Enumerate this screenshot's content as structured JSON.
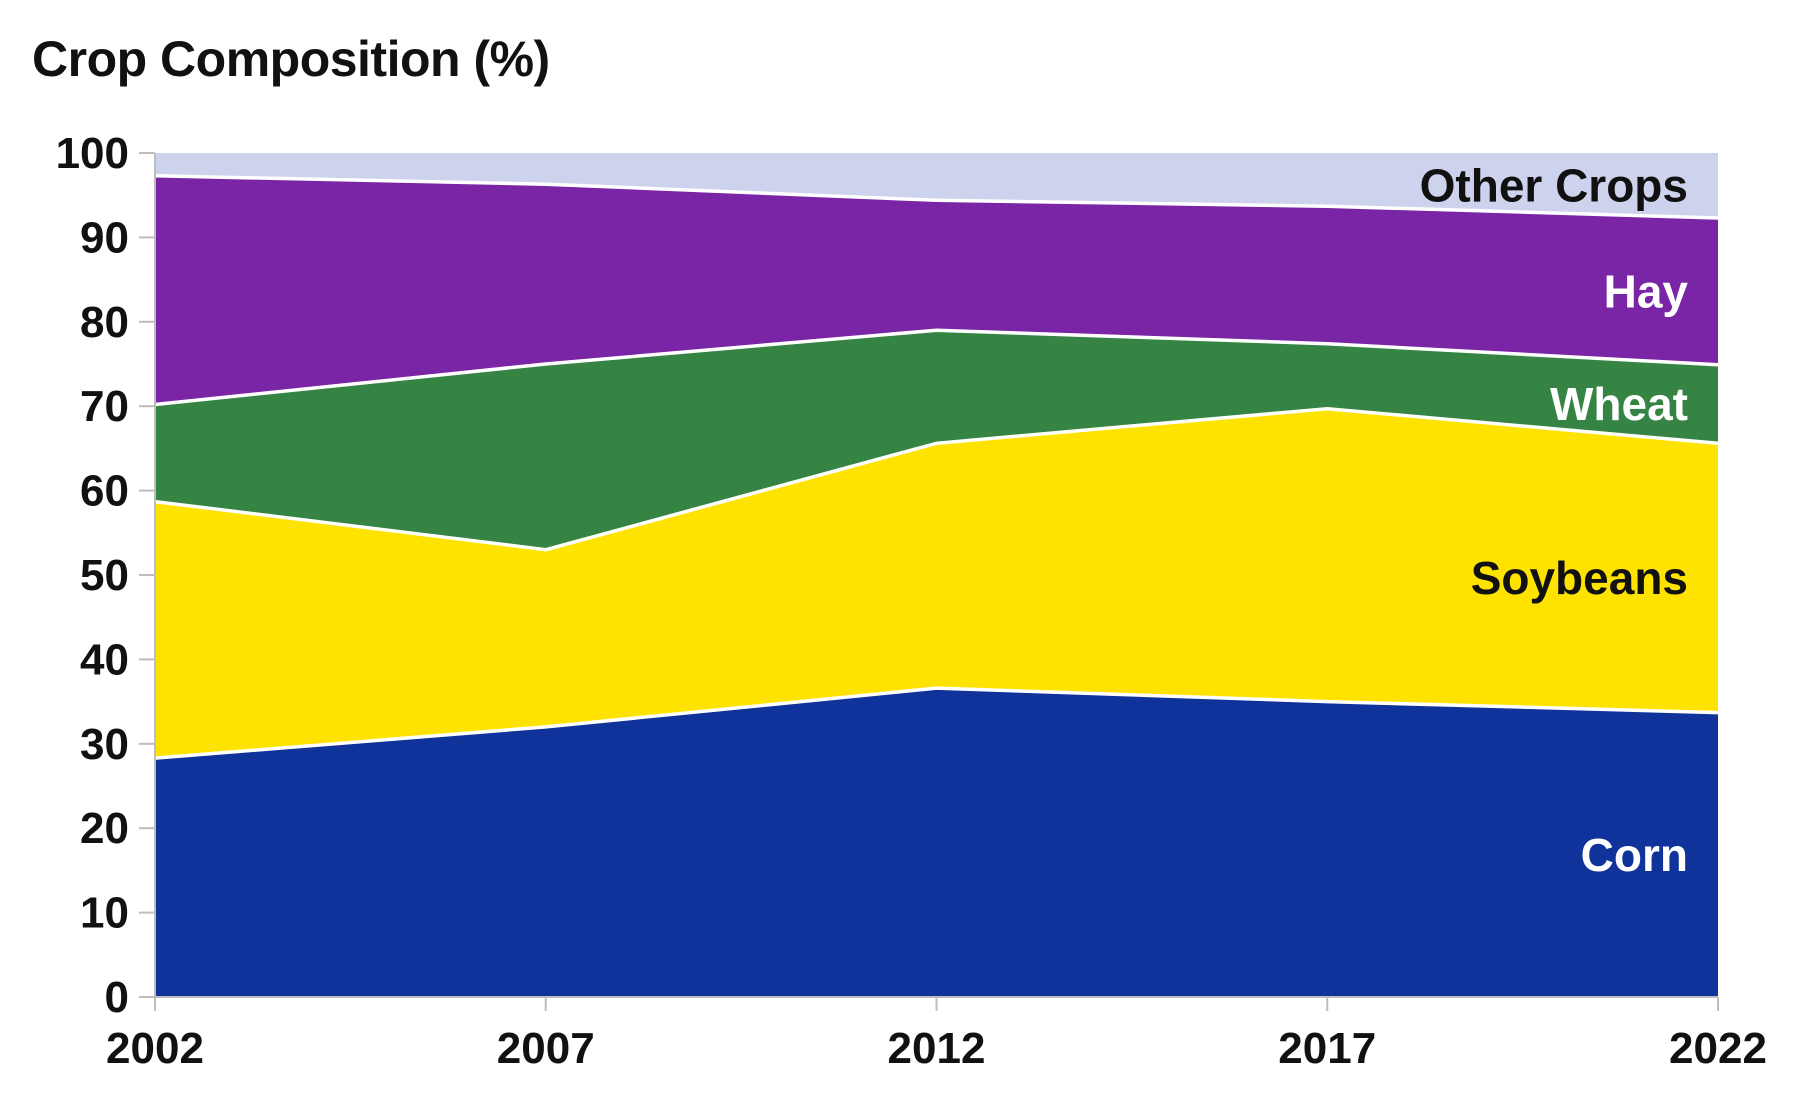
{
  "chart_data": {
    "type": "area",
    "stacked": true,
    "title": "Crop Composition (%)",
    "xlabel": "",
    "ylabel": "",
    "x": [
      "2002",
      "2007",
      "2012",
      "2017",
      "2022"
    ],
    "ylim": [
      0,
      100
    ],
    "yticks": [
      "0",
      "10",
      "20",
      "30",
      "40",
      "50",
      "60",
      "70",
      "80",
      "90",
      "100"
    ],
    "grid": false,
    "legend": "inline labels at right",
    "series": [
      {
        "name": "Corn",
        "values": [
          28.3,
          32.0,
          36.6,
          35.0,
          33.7
        ],
        "color": "#0f339b",
        "label_color": "#ffffff"
      },
      {
        "name": "Soybeans",
        "values": [
          30.4,
          21.0,
          29.0,
          34.7,
          31.9
        ],
        "color": "#ffe300",
        "label_color": "#111111"
      },
      {
        "name": "Wheat",
        "values": [
          11.5,
          22.0,
          13.4,
          7.7,
          9.3
        ],
        "color": "#358444",
        "label_color": "#ffffff"
      },
      {
        "name": "Hay",
        "values": [
          27.1,
          21.3,
          15.4,
          16.3,
          17.4
        ],
        "color": "#7925a6",
        "label_color": "#ffffff"
      },
      {
        "name": "Other Crops",
        "values": [
          2.7,
          3.7,
          5.6,
          6.3,
          7.7
        ],
        "color": "#cdd3ec",
        "label_color": "#111111"
      }
    ]
  }
}
